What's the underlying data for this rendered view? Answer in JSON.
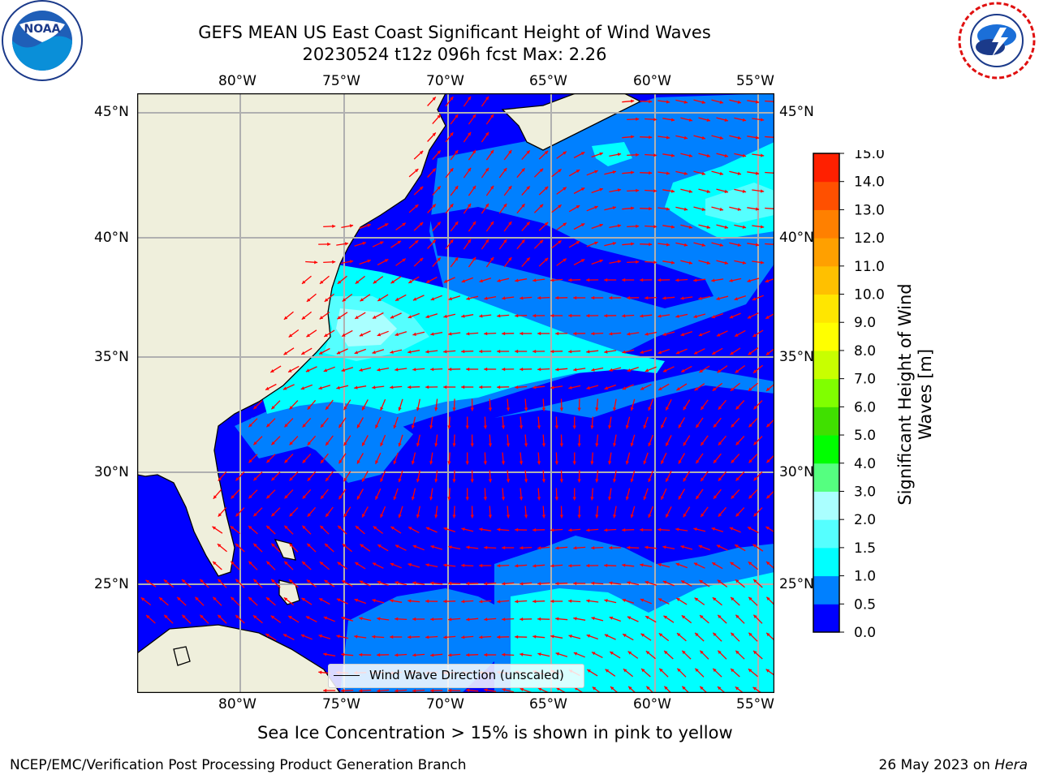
{
  "header": {
    "title_line1": "GEFS MEAN US East Coast Significant Height of Wind Waves",
    "title_line2": "20230524 t12z 096h fcst   Max: 2.26"
  },
  "logos": {
    "left": {
      "icon": "noaa-logo",
      "text": "NOAA",
      "ring_text": "NATIONAL OCEANIC AND ATMOSPHERIC ADMINISTRATION · U.S. DEPARTMENT OF COMMERCE"
    },
    "right": {
      "icon": "nws-logo",
      "ring_text": "NATIONAL WEATHER SERVICE"
    }
  },
  "map": {
    "lon_labels": [
      "80°W",
      "75°W",
      "70°W",
      "65°W",
      "60°W",
      "55°W"
    ],
    "lat_labels": [
      "45°N",
      "40°N",
      "35°N",
      "30°N",
      "25°N"
    ],
    "legend_label": "Wind Wave Direction (unscaled)",
    "colors": {
      "land": "#efefdc",
      "coast": "#000000",
      "grid": "#b0b0b0",
      "arrow": "#ff0000"
    }
  },
  "colorbar": {
    "label_line1": "Significant Height of Wind",
    "label_line2": "Waves [m]",
    "ticks": [
      "0.0",
      "0.5",
      "1.0",
      "1.5",
      "2.0",
      "3.0",
      "4.0",
      "5.0",
      "6.0",
      "7.0",
      "8.0",
      "9.0",
      "10.0",
      "11.0",
      "12.0",
      "13.0",
      "14.0",
      "15.0"
    ],
    "colors": [
      "#0000ff",
      "#0080ff",
      "#00ffff",
      "#55ffff",
      "#aaffff",
      "#55ff80",
      "#00ff00",
      "#40e000",
      "#80ff00",
      "#c8ff00",
      "#ffff00",
      "#ffe600",
      "#ffc000",
      "#ffa000",
      "#ff8000",
      "#ff5000",
      "#ff2000"
    ]
  },
  "caption": "Sea Ice Concentration > 15% is shown in pink to yellow",
  "footer": {
    "left": "NCEP/EMC/Verification Post Processing Product Generation Branch",
    "date": "26 May 2023 on ",
    "machine": "Hera"
  }
}
